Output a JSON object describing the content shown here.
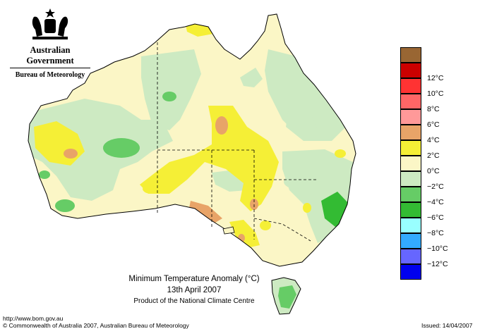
{
  "logo": {
    "government": "Australian Government",
    "bureau": "Bureau of Meteorology"
  },
  "map": {
    "title": "Minimum Temperature Anomaly (°C)",
    "date": "13th April 2007",
    "product": "Product of the National Climate Centre"
  },
  "legend": {
    "items": [
      {
        "label": "",
        "color": "#996633"
      },
      {
        "label": "12°C",
        "color": "#cc0000"
      },
      {
        "label": "10°C",
        "color": "#ff3333"
      },
      {
        "label": "8°C",
        "color": "#ff6666"
      },
      {
        "label": "6°C",
        "color": "#ff9999"
      },
      {
        "label": "4°C",
        "color": "#e8a468"
      },
      {
        "label": "2°C",
        "color": "#f5ef36"
      },
      {
        "label": "0°C",
        "color": "#fbf6c6"
      },
      {
        "label": "−2°C",
        "color": "#cdeac2"
      },
      {
        "label": "−4°C",
        "color": "#66cc66"
      },
      {
        "label": "−6°C",
        "color": "#33bb33"
      },
      {
        "label": "−8°C",
        "color": "#99ffff"
      },
      {
        "label": "−10°C",
        "color": "#33aaff"
      },
      {
        "label": "−12°C",
        "color": "#6666ff"
      },
      {
        "label": "",
        "color": "#0000ee"
      }
    ]
  },
  "footer": {
    "url": "http://www.bom.gov.au",
    "copyright": "© Commonwealth of Australia 2007, Australian Bureau of Meteorology",
    "issued": "Issued: 14/04/2007"
  }
}
